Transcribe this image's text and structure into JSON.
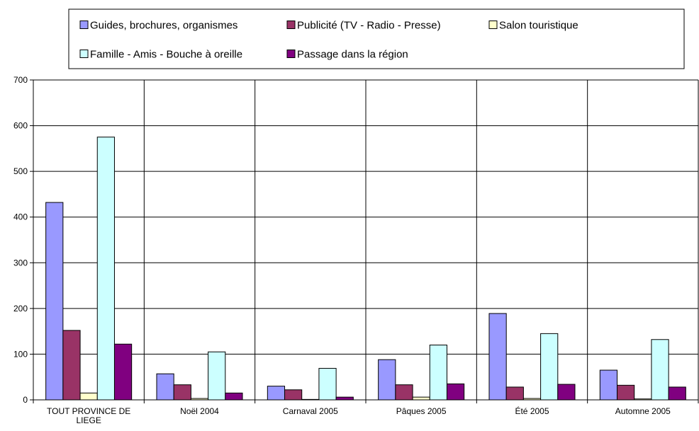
{
  "chart_data": {
    "type": "bar",
    "title": "",
    "xlabel": "",
    "ylabel": "",
    "ylim": [
      0,
      700
    ],
    "ytick_step": 100,
    "grid": true,
    "legend_position": "top",
    "categories": [
      [
        "TOUT PROVINCE DE",
        "LIEGE"
      ],
      [
        "Noël 2004"
      ],
      [
        "Carnaval 2005"
      ],
      [
        "Pâques 2005"
      ],
      [
        "Été 2005"
      ],
      [
        "Automne 2005"
      ]
    ],
    "series": [
      {
        "name": "Guides, brochures, organismes",
        "color": "#9999ff",
        "values": [
          432,
          57,
          30,
          88,
          189,
          65
        ]
      },
      {
        "name": "Publicité (TV - Radio - Presse)",
        "color": "#993366",
        "values": [
          152,
          33,
          22,
          33,
          28,
          32
        ]
      },
      {
        "name": "Salon touristique",
        "color": "#ffffcc",
        "values": [
          15,
          3,
          1,
          6,
          3,
          2
        ]
      },
      {
        "name": "Famille - Amis - Bouche à oreille",
        "color": "#ccffff",
        "values": [
          575,
          105,
          69,
          120,
          145,
          132
        ]
      },
      {
        "name": "Passage dans la région",
        "color": "#800080",
        "values": [
          122,
          15,
          6,
          35,
          34,
          28
        ]
      }
    ]
  }
}
